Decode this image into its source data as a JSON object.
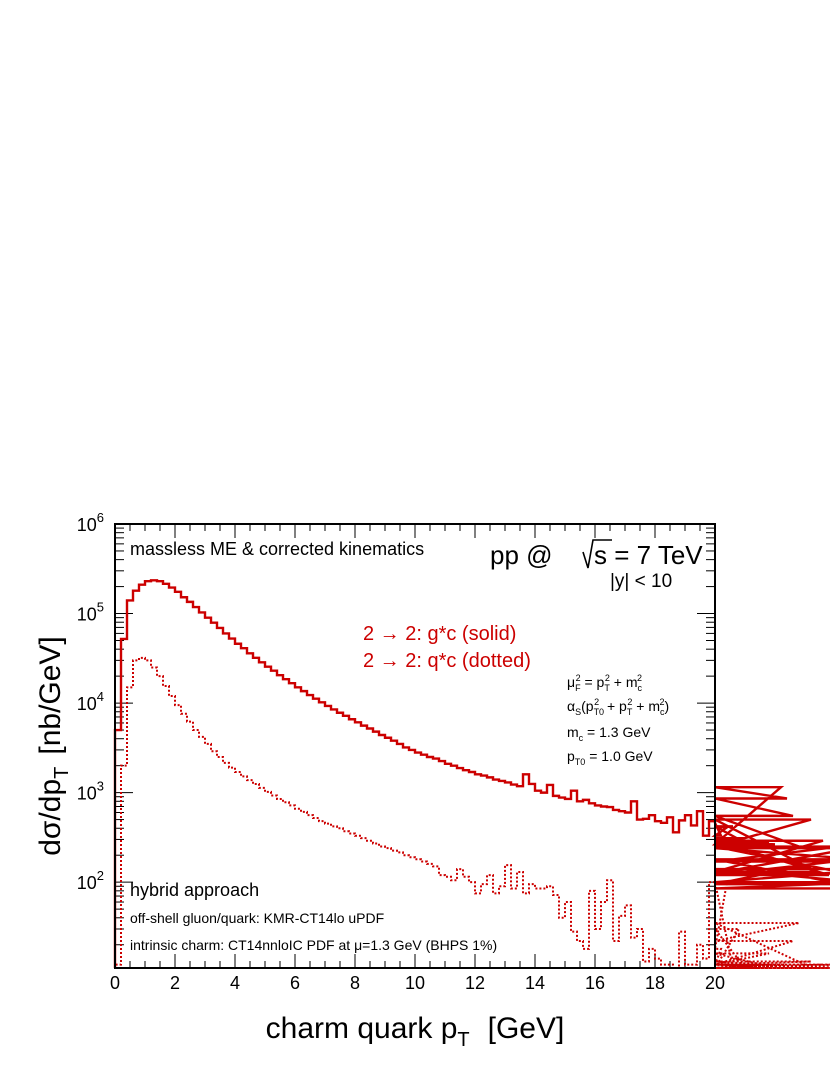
{
  "chart_data": {
    "type": "line",
    "xlabel": {
      "main": "charm quark p",
      "sub": "T",
      "unit": "[GeV]"
    },
    "ylabel": {
      "a": "dσ/dp",
      "sub": "T",
      "unit": "[nb/GeV]"
    },
    "xlim": [
      0,
      20
    ],
    "ylim": [
      11,
      1000000
    ],
    "yscale": "log",
    "xticks": [
      "0",
      "2",
      "4",
      "6",
      "8",
      "10",
      "12",
      "14",
      "16",
      "18",
      "20"
    ],
    "yticks": [
      {
        "value": 100,
        "base": "10",
        "exp": "2"
      },
      {
        "value": 1000,
        "base": "10",
        "exp": "3"
      },
      {
        "value": 10000,
        "base": "10",
        "exp": "4"
      },
      {
        "value": 100000,
        "base": "10",
        "exp": "5"
      },
      {
        "value": 1000000,
        "base": "10",
        "exp": "6"
      }
    ],
    "annotations": {
      "top_left": "massless ME & corrected kinematics",
      "energy_prefix": "pp @ ",
      "energy_sqrt": "s",
      "energy_suffix": " = 7 TeV",
      "rapidity": "|y| < 10",
      "legend_solid": "2 → 2: g*c (solid)",
      "legend_dotted": "2 → 2: q*c (dotted)",
      "scale_mu": "μ",
      "scale_mu_sub": "F",
      "scale_mu_rhs": " = p",
      "scale_pt_sub": "T",
      "scale_plus_mc": " + m",
      "scale_c_sub": "c",
      "alpha_line": "α",
      "alpha_sub": "S",
      "alpha_open": "(p",
      "alpha_t0": "T0",
      "alpha_plus_pt": " + p",
      "alpha_t": "T",
      "alpha_plus_m": " + m",
      "alpha_c": "c",
      "alpha_close": ")",
      "sq": "2",
      "mc_label": "m",
      "mc_sub": "c",
      "mc_value": " = 1.3 GeV",
      "pt0_label": "p",
      "pt0_sub": "T0",
      "pt0_value": " = 1.0 GeV",
      "hybrid": "hybrid approach",
      "offshell": "off-shell gluon/quark: KMR-CT14lo uPDF",
      "intrinsic_a": "intrinsic charm: CT14nnloIC PDF at ",
      "intrinsic_mu": "μ",
      "intrinsic_b": "=1.3 GeV (BHPS 1%)"
    },
    "series": [
      {
        "name": "g*c (solid)",
        "color": "#cc0000",
        "style": "solid",
        "binwidth": 0.2,
        "values": [
          5000,
          52000,
          140000,
          180000,
          210000,
          230000,
          235000,
          230000,
          215000,
          195000,
          175000,
          152000,
          135000,
          118000,
          103000,
          90000,
          79000,
          69000,
          60000,
          52500,
          46000,
          41000,
          36000,
          32000,
          28500,
          25500,
          23000,
          20500,
          18500,
          16700,
          15000,
          13600,
          12300,
          11200,
          10200,
          9300,
          8500,
          7800,
          7200,
          6600,
          6100,
          5600,
          5200,
          4800,
          4400,
          4100,
          3800,
          3500,
          3200,
          3000,
          2800,
          2650,
          2500,
          2400,
          2250,
          2100,
          2000,
          1880,
          1780,
          1700,
          1600,
          1550,
          1480,
          1400,
          1350,
          1300,
          1230,
          1180,
          1600,
          1250,
          1050,
          1000,
          1220,
          920,
          880,
          850,
          1050,
          800,
          830,
          760,
          720,
          700,
          690,
          640,
          620,
          600,
          800,
          500,
          510,
          560,
          480,
          460,
          530,
          360,
          490,
          560,
          430,
          620,
          330,
          480,
          460,
          330,
          410,
          420,
          300,
          310,
          260,
          275,
          255,
          280,
          265,
          1150,
          860,
          550,
          250,
          250,
          500,
          130,
          290,
          120,
          170,
          250,
          125,
          240,
          180,
          85,
          100,
          140,
          95,
          240
        ]
      },
      {
        "name": "q*c (dotted)",
        "color": "#cc0000",
        "style": "dotted",
        "binwidth": 0.2,
        "values": [
          12,
          2000,
          15000,
          30000,
          32000,
          30000,
          25000,
          20000,
          15500,
          12000,
          9500,
          7600,
          6200,
          5000,
          4200,
          3500,
          2900,
          2500,
          2150,
          1900,
          1700,
          1520,
          1380,
          1250,
          1130,
          1020,
          930,
          850,
          780,
          720,
          660,
          610,
          560,
          520,
          480,
          450,
          420,
          400,
          370,
          350,
          330,
          310,
          290,
          270,
          250,
          240,
          225,
          215,
          200,
          190,
          180,
          170,
          160,
          150,
          120,
          115,
          105,
          140,
          115,
          100,
          75,
          95,
          120,
          75,
          90,
          155,
          85,
          130,
          75,
          95,
          85,
          85,
          90,
          72,
          40,
          60,
          28,
          22,
          18,
          80,
          30,
          60,
          105,
          22,
          42,
          55,
          24,
          30,
          13,
          18,
          14,
          12,
          12,
          11,
          28,
          12,
          12,
          20,
          14,
          100,
          12,
          18,
          100,
          11,
          30,
          11,
          12,
          11,
          12,
          16,
          11,
          11,
          12,
          22,
          35,
          12,
          13,
          11,
          12,
          11,
          12,
          11,
          12,
          11,
          11,
          11,
          11,
          11,
          11,
          11,
          11,
          11,
          11,
          11,
          11,
          11,
          11,
          11,
          11,
          11,
          11,
          11,
          11,
          11,
          11,
          11,
          11,
          11,
          11,
          11,
          11,
          11,
          11,
          11,
          11,
          11,
          11,
          11,
          11,
          11,
          11,
          11,
          11,
          11,
          11,
          11,
          11
        ]
      }
    ]
  }
}
